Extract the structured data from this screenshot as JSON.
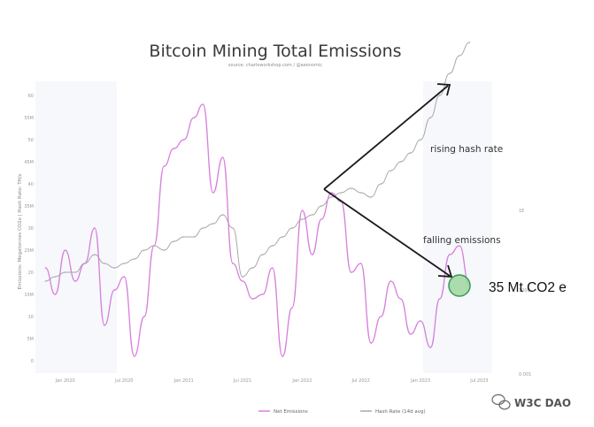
{
  "chart_data": {
    "type": "line",
    "title": "Bitcoin Mining Total Emissions",
    "subtitle": "source: chartsworkshop.com / @aeonomic",
    "ylabel": "Emissions: Megatonnes CO2e | Hash Rate: TH/s",
    "x_tick_labels": [
      "Jan 2020",
      "Jul 2020",
      "Jan 2021",
      "Jul 2021",
      "Jan 2022",
      "Jul 2022",
      "Jan 2023",
      "Jul 2023"
    ],
    "left_tick_labels": [
      "60",
      "55M",
      "50",
      "45M",
      "40",
      "35M",
      "30",
      "25M",
      "20",
      "15M",
      "10",
      "5M",
      "0"
    ],
    "right_tick_labels": [
      "1E",
      "100E",
      "0.001"
    ],
    "ylim": [
      0,
      60
    ],
    "series": [
      {
        "name": "Net Emissions",
        "color": "#d77fdc",
        "x": [
          "2019-11-01",
          "2019-12-01",
          "2020-01-01",
          "2020-02-01",
          "2020-03-01",
          "2020-04-01",
          "2020-05-01",
          "2020-06-01",
          "2020-07-01",
          "2020-08-01",
          "2020-09-01",
          "2020-10-01",
          "2020-11-01",
          "2020-12-01",
          "2021-01-01",
          "2021-02-01",
          "2021-03-01",
          "2021-04-01",
          "2021-05-01",
          "2021-06-01",
          "2021-07-01",
          "2021-08-01",
          "2021-09-01",
          "2021-10-01",
          "2021-11-01",
          "2021-12-01",
          "2022-01-01",
          "2022-02-01",
          "2022-03-01",
          "2022-04-01",
          "2022-05-01",
          "2022-06-01",
          "2022-07-01",
          "2022-08-01",
          "2022-09-01",
          "2022-10-01",
          "2022-11-01",
          "2022-12-01",
          "2023-01-01",
          "2023-02-01",
          "2023-03-01",
          "2023-04-01",
          "2023-05-01",
          "2023-06-01"
        ],
        "values": [
          21,
          15,
          25,
          18,
          22,
          30,
          8,
          16,
          19,
          1,
          10,
          26,
          44,
          48,
          50,
          55,
          58,
          38,
          46,
          22,
          18,
          14,
          15,
          21,
          1,
          12,
          34,
          24,
          32,
          38,
          36,
          20,
          22,
          4,
          10,
          18,
          14,
          6,
          9,
          3,
          14,
          24,
          26,
          17
        ]
      },
      {
        "name": "Hash Rate (14d avg)",
        "color": "#a8a8a8",
        "x": [
          "2019-11-01",
          "2019-12-01",
          "2020-01-01",
          "2020-02-01",
          "2020-03-01",
          "2020-04-01",
          "2020-05-01",
          "2020-06-01",
          "2020-07-01",
          "2020-08-01",
          "2020-09-01",
          "2020-10-01",
          "2020-11-01",
          "2020-12-01",
          "2021-01-01",
          "2021-02-01",
          "2021-03-01",
          "2021-04-01",
          "2021-05-01",
          "2021-06-01",
          "2021-07-01",
          "2021-08-01",
          "2021-09-01",
          "2021-10-01",
          "2021-11-01",
          "2021-12-01",
          "2022-01-01",
          "2022-02-01",
          "2022-03-01",
          "2022-04-01",
          "2022-05-01",
          "2022-06-01",
          "2022-07-01",
          "2022-08-01",
          "2022-09-01",
          "2022-10-01",
          "2022-11-01",
          "2022-12-01",
          "2023-01-01",
          "2023-02-01",
          "2023-03-01",
          "2023-04-01",
          "2023-05-01",
          "2023-06-01"
        ],
        "values": [
          18,
          19,
          20,
          20,
          22,
          24,
          22,
          21,
          22,
          23,
          25,
          26,
          25,
          27,
          28,
          28,
          30,
          31,
          33,
          30,
          19,
          21,
          24,
          26,
          28,
          30,
          32,
          33,
          35,
          37,
          38,
          39,
          38,
          37,
          40,
          43,
          45,
          47,
          50,
          55,
          60,
          65,
          69,
          72
        ]
      }
    ],
    "annotations": [
      {
        "text": "rising hash rate"
      },
      {
        "text": "falling emissions"
      },
      {
        "text": "35 Mt CO2 e"
      }
    ],
    "grid": false,
    "legend_position": "bottom"
  },
  "watermark": {
    "text": "W3C DAO"
  },
  "colors": {
    "emissions": "#d77fdc",
    "hashrate": "#a8a8a8",
    "arrow": "#1a1a1a",
    "highlight_fill": "#9fd6a0",
    "highlight_stroke": "#3a9a52"
  }
}
